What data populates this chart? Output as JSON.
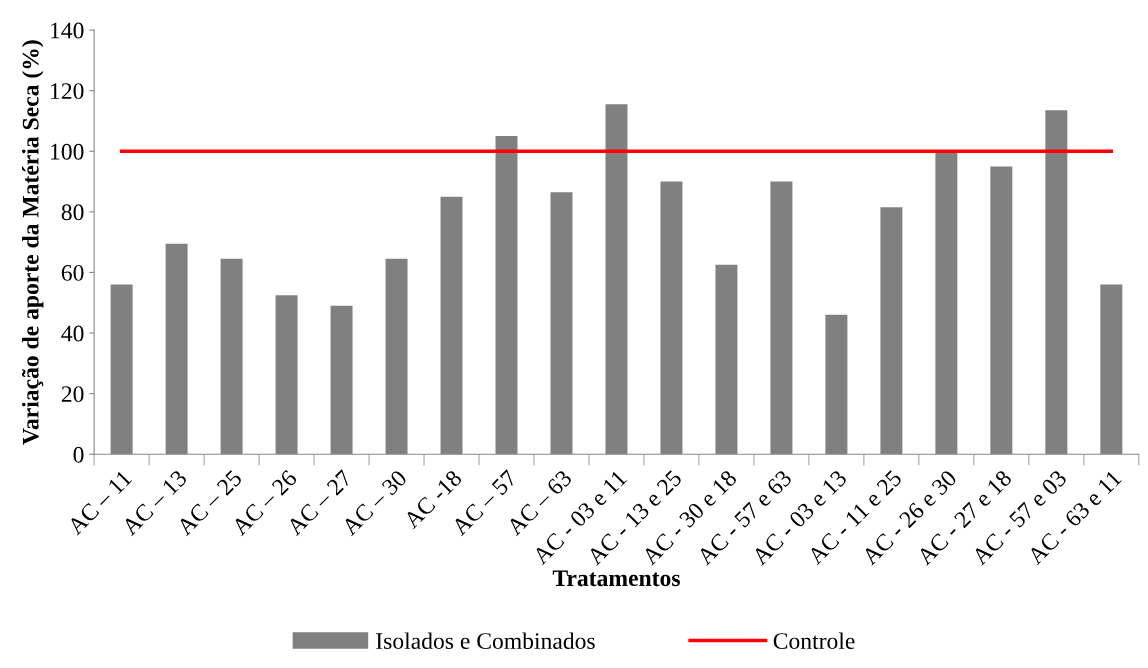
{
  "chart_data": {
    "type": "bar",
    "xlabel": "Tratamentos",
    "ylabel": "Variação de aporte da Matéria Seca (%)",
    "categories": [
      "AC – 11",
      "AC – 13",
      "AC – 25",
      "AC – 26",
      "AC – 27",
      "AC – 30",
      "AC -18",
      "AC – 57",
      "AC – 63",
      "AC - 03 e 11",
      "AC - 13 e 25",
      "AC - 30 e 18",
      "AC - 57 e 63",
      "AC - 03 e 13",
      "AC - 11 e 25",
      "AC - 26 e 30",
      "AC - 27 e 18",
      "AC - 57 e 03",
      "AC - 63 e 11"
    ],
    "series": [
      {
        "name": "Isolados e Combinados",
        "color": "#808080",
        "values": [
          56,
          69.5,
          64.5,
          52.5,
          49,
          64.5,
          85,
          105,
          86.5,
          115.5,
          90,
          62.5,
          90,
          46,
          81.5,
          100,
          95,
          113.5,
          56
        ]
      },
      {
        "name": "Controle",
        "type": "line",
        "color": "#ff0000",
        "values": [
          100,
          100,
          100,
          100,
          100,
          100,
          100,
          100,
          100,
          100,
          100,
          100,
          100,
          100,
          100,
          100,
          100,
          100,
          100
        ]
      }
    ],
    "ylim": [
      0,
      140
    ],
    "yticks": [
      0,
      20,
      40,
      60,
      80,
      100,
      120,
      140
    ],
    "grid": false,
    "legend": "bottom"
  }
}
